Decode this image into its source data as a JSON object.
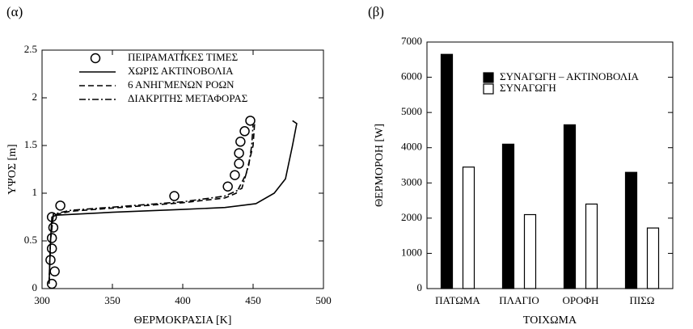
{
  "chart_data": [
    {
      "type": "line",
      "title": "(α)",
      "x_label": "ΘΕΡΜΟΚΡΑΣΙΑ [K]",
      "y_label": "ΥΨΟΣ [m]",
      "xlim": [
        300,
        500
      ],
      "xticks": [
        300,
        350,
        400,
        450,
        500
      ],
      "ylim": [
        0,
        2.5
      ],
      "yticks": [
        0,
        0.5,
        1,
        1.5,
        2,
        2.5
      ],
      "legend": "upper left",
      "series": [
        {
          "name": "ΠΕΙΡΑΜΑΤΙΚΕΣ ΤΙΜΕΣ",
          "color": "#000000",
          "style": "markers",
          "x": [
            307,
            309,
            306,
            307,
            307,
            308,
            307,
            313,
            394,
            432,
            437,
            440,
            440,
            441,
            444,
            448
          ],
          "values": [
            0.05,
            0.18,
            0.3,
            0.42,
            0.53,
            0.64,
            0.75,
            0.87,
            0.97,
            1.07,
            1.19,
            1.31,
            1.42,
            1.54,
            1.65,
            1.76
          ]
        },
        {
          "name": "ΧΩΡΙΣ ΑΚΤΙΝΟΒΟΛΙΑ",
          "color": "#000000",
          "style": "solid",
          "x": [
            305,
            306,
            307,
            310,
            350,
            400,
            430,
            452,
            465,
            473,
            478,
            481,
            478
          ],
          "values": [
            0.05,
            0.5,
            0.75,
            0.77,
            0.8,
            0.83,
            0.85,
            0.89,
            1.0,
            1.15,
            1.5,
            1.73,
            1.76
          ]
        },
        {
          "name": "6 ΑΝΗΓΜΕΝΩΝ ΡΟΩΝ",
          "color": "#000000",
          "style": "dashed",
          "x": [
            305,
            306,
            308,
            320,
            400,
            430,
            438,
            445,
            450,
            451,
            449
          ],
          "values": [
            0.05,
            0.5,
            0.77,
            0.81,
            0.9,
            0.95,
            1.0,
            1.2,
            1.5,
            1.72,
            1.73
          ]
        },
        {
          "name": "ΔΙΑΚΡΙΤΗΣ ΜΕΤΑΦΟΡΑΣ",
          "color": "#000000",
          "style": "dashdot",
          "x": [
            305,
            306,
            308,
            320,
            400,
            430,
            442,
            447,
            449,
            450
          ],
          "values": [
            0.05,
            0.5,
            0.78,
            0.82,
            0.91,
            0.97,
            1.05,
            1.3,
            1.5,
            1.72
          ]
        }
      ]
    },
    {
      "type": "bar",
      "title": "(β)",
      "x_label": "ΤΟΙΧΩΜΑ",
      "y_label": "ΘΕΡΜΟΡΟΗ [W]",
      "categories": [
        "ΠΑΤΩΜΑ",
        "ΠΛΑΓΙΟ",
        "ΟΡΟΦΗ",
        "ΠΙΣΩ"
      ],
      "ylim": [
        0,
        7000
      ],
      "yticks": [
        0,
        1000,
        2000,
        3000,
        4000,
        5000,
        6000,
        7000
      ],
      "legend": "upper center",
      "series": [
        {
          "name": "ΣΥΝΑΓΩΓΗ – ΑΚΤΙΝΟΒΟΛΙΑ",
          "color": "#000000",
          "values": [
            6650,
            4100,
            4650,
            3300
          ]
        },
        {
          "name": "ΣΥΝΑΓΩΓΗ",
          "color": "#ffffff",
          "values": [
            3450,
            2100,
            2400,
            1720
          ]
        }
      ]
    }
  ]
}
